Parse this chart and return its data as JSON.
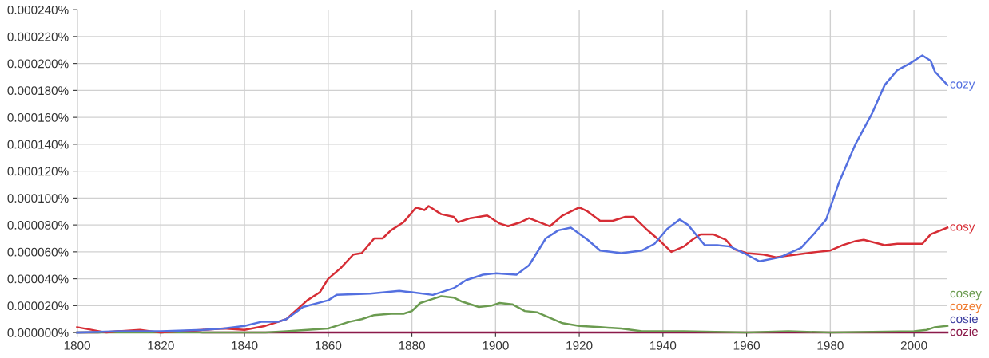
{
  "chart_data": {
    "type": "line",
    "xlim": [
      1800,
      2008
    ],
    "xticks": [
      1800,
      1820,
      1840,
      1860,
      1880,
      1900,
      1920,
      1940,
      1960,
      1980,
      2000
    ],
    "ylim": [
      0,
      0.00024
    ],
    "yticks": [
      {
        "value": 0,
        "label": "0.000000%"
      },
      {
        "value": 2e-05,
        "label": "0.000020%"
      },
      {
        "value": 4e-05,
        "label": "0.000040%"
      },
      {
        "value": 6e-05,
        "label": "0.000060%"
      },
      {
        "value": 8e-05,
        "label": "0.000080%"
      },
      {
        "value": 0.0001,
        "label": "0.000100%"
      },
      {
        "value": 0.00012,
        "label": "0.000120%"
      },
      {
        "value": 0.00014,
        "label": "0.000140%"
      },
      {
        "value": 0.00016,
        "label": "0.000160%"
      },
      {
        "value": 0.00018,
        "label": "0.000180%"
      },
      {
        "value": 0.0002,
        "label": "0.000200%"
      },
      {
        "value": 0.00022,
        "label": "0.000220%"
      },
      {
        "value": 0.00024,
        "label": "0.000240%"
      }
    ],
    "grid": true,
    "legend": false,
    "marker": "none",
    "line_style": "solid",
    "series": [
      {
        "name": "cozy",
        "color": "#5470e0",
        "x": [
          1800,
          1810,
          1820,
          1830,
          1835,
          1840,
          1844,
          1848,
          1850,
          1854,
          1860,
          1862,
          1870,
          1877,
          1880,
          1885,
          1890,
          1893,
          1897,
          1900,
          1905,
          1908,
          1912,
          1915,
          1918,
          1922,
          1925,
          1930,
          1935,
          1938,
          1941,
          1944,
          1946,
          1950,
          1953,
          1956,
          1960,
          1963,
          1968,
          1973,
          1976,
          1979,
          1982,
          1986,
          1990,
          1993,
          1996,
          1999,
          2002,
          2004,
          2005,
          2008
        ],
        "values": [
          0,
          1e-06,
          1e-06,
          2e-06,
          3e-06,
          5e-06,
          8e-06,
          8e-06,
          1e-05,
          1.9e-05,
          2.4e-05,
          2.8e-05,
          2.9e-05,
          3.1e-05,
          3e-05,
          2.8e-05,
          3.3e-05,
          3.9e-05,
          4.3e-05,
          4.4e-05,
          4.3e-05,
          5e-05,
          7e-05,
          7.6e-05,
          7.8e-05,
          6.9e-05,
          6.1e-05,
          5.9e-05,
          6.1e-05,
          6.6e-05,
          7.7e-05,
          8.4e-05,
          8e-05,
          6.5e-05,
          6.5e-05,
          6.4e-05,
          5.8e-05,
          5.3e-05,
          5.6e-05,
          6.3e-05,
          7.3e-05,
          8.4e-05,
          0.000111,
          0.00014,
          0.000163,
          0.000184,
          0.000195,
          0.0002,
          0.000206,
          0.000202,
          0.000194,
          0.000184
        ]
      },
      {
        "name": "cosy",
        "color": "#d62d35",
        "x": [
          1800,
          1807,
          1810,
          1815,
          1820,
          1825,
          1830,
          1835,
          1840,
          1845,
          1850,
          1855,
          1858,
          1860,
          1863,
          1866,
          1868,
          1871,
          1873,
          1875,
          1878,
          1881,
          1883,
          1884,
          1887,
          1890,
          1891,
          1894,
          1898,
          1901,
          1903,
          1906,
          1908,
          1913,
          1916,
          1920,
          1922,
          1925,
          1928,
          1931,
          1933,
          1936,
          1939,
          1942,
          1945,
          1947,
          1949,
          1952,
          1955,
          1957,
          1960,
          1964,
          1967,
          1972,
          1977,
          1980,
          1983,
          1986,
          1988,
          1993,
          1996,
          1999,
          2002,
          2004,
          2008
        ],
        "values": [
          4e-06,
          0,
          1e-06,
          2e-06,
          0,
          1e-06,
          2e-06,
          3e-06,
          2e-06,
          5e-06,
          1e-05,
          2.4e-05,
          3e-05,
          4e-05,
          4.8e-05,
          5.8e-05,
          5.9e-05,
          7e-05,
          7e-05,
          7.6e-05,
          8.2e-05,
          9.3e-05,
          9.1e-05,
          9.4e-05,
          8.8e-05,
          8.6e-05,
          8.2e-05,
          8.5e-05,
          8.7e-05,
          8.1e-05,
          7.9e-05,
          8.2e-05,
          8.5e-05,
          7.9e-05,
          8.7e-05,
          9.3e-05,
          9e-05,
          8.3e-05,
          8.3e-05,
          8.6e-05,
          8.6e-05,
          7.7e-05,
          6.9e-05,
          6e-05,
          6.4e-05,
          6.9e-05,
          7.3e-05,
          7.3e-05,
          6.9e-05,
          6.2e-05,
          5.9e-05,
          5.8e-05,
          5.6e-05,
          5.8e-05,
          6e-05,
          6.1e-05,
          6.5e-05,
          6.8e-05,
          6.9e-05,
          6.5e-05,
          6.6e-05,
          6.6e-05,
          6.6e-05,
          7.3e-05,
          7.8e-05
        ]
      },
      {
        "name": "cosey",
        "color": "#6b9b50",
        "x": [
          1800,
          1840,
          1845,
          1850,
          1855,
          1860,
          1862,
          1865,
          1868,
          1871,
          1875,
          1878,
          1880,
          1882,
          1885,
          1887,
          1890,
          1892,
          1896,
          1899,
          1901,
          1904,
          1907,
          1910,
          1913,
          1916,
          1920,
          1925,
          1930,
          1935,
          1945,
          1960,
          1970,
          1980,
          2000,
          2003,
          2005,
          2008
        ],
        "values": [
          0,
          0,
          0,
          1e-06,
          2e-06,
          3e-06,
          5e-06,
          8e-06,
          1e-05,
          1.3e-05,
          1.4e-05,
          1.4e-05,
          1.6e-05,
          2.2e-05,
          2.5e-05,
          2.7e-05,
          2.6e-05,
          2.3e-05,
          1.9e-05,
          2e-05,
          2.2e-05,
          2.1e-05,
          1.6e-05,
          1.5e-05,
          1.1e-05,
          7e-06,
          5e-06,
          4e-06,
          3e-06,
          1e-06,
          1e-06,
          0,
          1e-06,
          0,
          1e-06,
          2e-06,
          4e-06,
          5e-06
        ]
      },
      {
        "name": "cozey",
        "color": "#f07b2f"
      },
      {
        "name": "cosie",
        "color": "#3b3ea0"
      },
      {
        "name": "cozie",
        "color": "#8b1a4a",
        "x": [
          1800,
          1805,
          1810,
          1815,
          1820,
          1825,
          1830,
          1840,
          1860,
          1880,
          1900,
          1920,
          1940,
          1960,
          1980,
          2008
        ],
        "values": [
          0,
          0,
          1e-06,
          1e-06,
          0,
          1e-06,
          0,
          0,
          0,
          0,
          0,
          0,
          0,
          0,
          0,
          0
        ]
      }
    ]
  }
}
